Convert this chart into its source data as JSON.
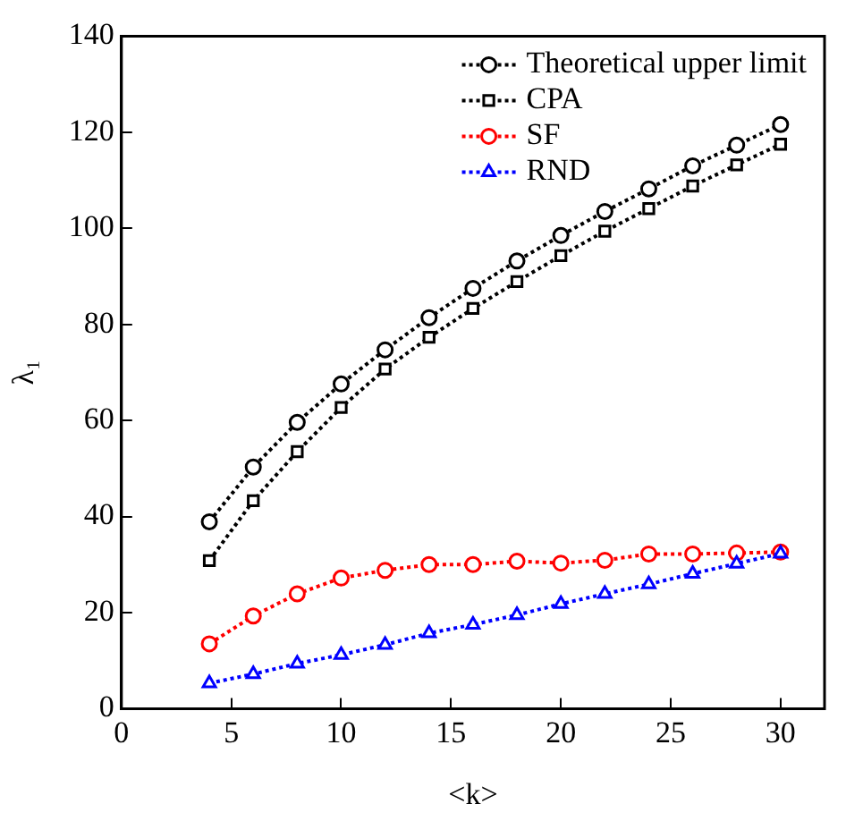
{
  "chart_data": {
    "type": "line",
    "xlabel": "<k>",
    "ylabel": "λ₁",
    "x": [
      4,
      6,
      8,
      10,
      12,
      14,
      16,
      18,
      20,
      22,
      24,
      26,
      28,
      30
    ],
    "series": [
      {
        "name": "Theoretical upper limit",
        "color": "#000000",
        "marker": "circle",
        "values": [
          38.9,
          50.3,
          59.6,
          67.6,
          74.7,
          81.4,
          87.5,
          93.2,
          98.5,
          103.5,
          108.2,
          113,
          117.3,
          121.6
        ]
      },
      {
        "name": "CPA",
        "color": "#000000",
        "marker": "square",
        "values": [
          30.8,
          43.3,
          53.5,
          62.7,
          70.7,
          77.3,
          83.3,
          88.9,
          94.3,
          99.4,
          104.1,
          108.8,
          113.2,
          117.5
        ]
      },
      {
        "name": "SF",
        "color": "#ff0000",
        "marker": "circle",
        "values": [
          13.5,
          19.3,
          23.9,
          27.2,
          28.8,
          30,
          30,
          30.7,
          30.3,
          30.9,
          32.2,
          32.2,
          32.4,
          32.6
        ]
      },
      {
        "name": "RND",
        "color": "#0000ff",
        "marker": "triangle",
        "values": [
          5.3,
          7.2,
          9.4,
          11.2,
          13.3,
          15.7,
          17.5,
          19.5,
          21.8,
          23.9,
          25.9,
          28.1,
          30.2,
          32.3
        ]
      }
    ],
    "xlim": [
      0,
      32
    ],
    "xticks": [
      0,
      5,
      10,
      15,
      20,
      25,
      30
    ],
    "ylim": [
      0,
      140
    ],
    "yticks": [
      0,
      20,
      40,
      60,
      80,
      100,
      120,
      140
    ],
    "grid": false,
    "legend": "top right",
    "line_style": "dotted"
  }
}
